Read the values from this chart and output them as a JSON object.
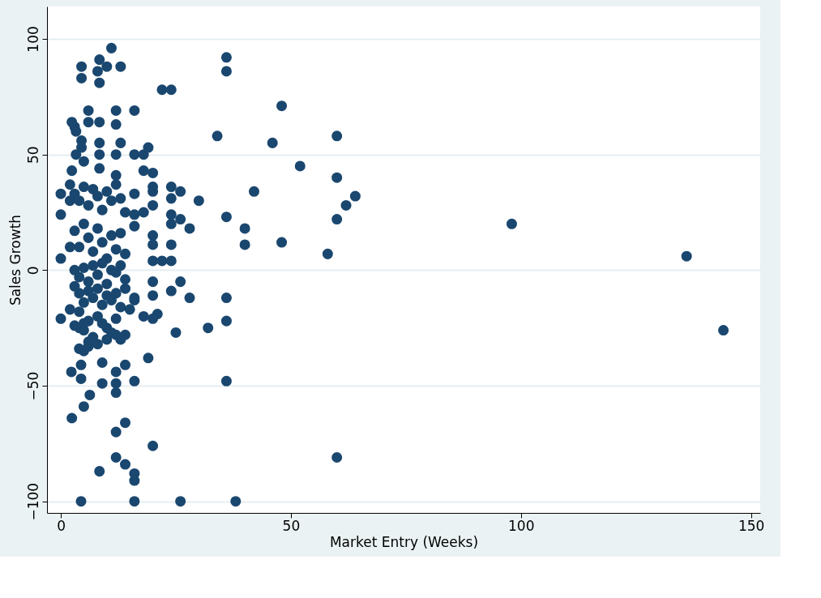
{
  "chart_data": {
    "type": "scatter",
    "xlabel": "Market Entry (Weeks)",
    "ylabel": "Sales Growth",
    "xlim": [
      -3,
      152
    ],
    "ylim": [
      -105,
      114
    ],
    "xticks": [
      0,
      50,
      100,
      150
    ],
    "yticks": [
      -100,
      -50,
      0,
      50,
      100
    ],
    "grid": "y",
    "marker": "circle",
    "series": [
      {
        "color": "#1a476f",
        "x": [
          98,
          136,
          144,
          60,
          60,
          60,
          60,
          62,
          64,
          58,
          48,
          46,
          52,
          48,
          42,
          40,
          40,
          36,
          36,
          36,
          36,
          36,
          36,
          34,
          38,
          32,
          30,
          28,
          28,
          26,
          26,
          25,
          22,
          24,
          11,
          4.5,
          4.5,
          8.4,
          8,
          8.4,
          10,
          13,
          6,
          6,
          8.4,
          12,
          12,
          16,
          2.4,
          3,
          3.3,
          4.5,
          4.5,
          8.4,
          8.4,
          13,
          12,
          16,
          19,
          18,
          3.3,
          5,
          2.4,
          8.4,
          12,
          18,
          20,
          20,
          20,
          24,
          26,
          24,
          0,
          0,
          16,
          16,
          18,
          20,
          24,
          24,
          26,
          20,
          20,
          24,
          0,
          24,
          20,
          22,
          4.4,
          2.3,
          4.4,
          9,
          9,
          12,
          14,
          12,
          12,
          16,
          19,
          6.3,
          5,
          2.4,
          14,
          12,
          20,
          12,
          14,
          8.4,
          16,
          16,
          4.4,
          16,
          24,
          20,
          20,
          21,
          20,
          18,
          15,
          16,
          0,
          2,
          3,
          4,
          5,
          6,
          7,
          8,
          9,
          10,
          11,
          12,
          13,
          14,
          2,
          3,
          4,
          5,
          6,
          7,
          8,
          9,
          10,
          11,
          12,
          13,
          14,
          16,
          2,
          3,
          4,
          5,
          6,
          7,
          8,
          9,
          10,
          11,
          12,
          13,
          14,
          3,
          4,
          5,
          6,
          7,
          8,
          9,
          10,
          11,
          12,
          13,
          14,
          16,
          2,
          4,
          6,
          8,
          10,
          12,
          14,
          3,
          5,
          7,
          9,
          11,
          13,
          4,
          5,
          6,
          8,
          10,
          12,
          4,
          5,
          6
        ],
        "values": [
          20,
          6,
          -26,
          58,
          40,
          22,
          -81,
          28,
          32,
          7,
          71,
          55,
          45,
          12,
          34,
          18,
          11,
          92,
          86,
          23,
          -12,
          -22,
          -48,
          58,
          -100,
          -25,
          30,
          18,
          -12,
          -100,
          -5,
          -27,
          78,
          78,
          96,
          88,
          83,
          91,
          86,
          81,
          88,
          88,
          69,
          64,
          64,
          69,
          63,
          69,
          64,
          62,
          60,
          56,
          53,
          55,
          50,
          55,
          50,
          50,
          53,
          50,
          50,
          47,
          43,
          44,
          41,
          43,
          42,
          36,
          34,
          36,
          34,
          31,
          33,
          24,
          33,
          24,
          25,
          28,
          24,
          20,
          22,
          15,
          11,
          11,
          5,
          4,
          4,
          4,
          -41,
          -44,
          -47,
          -40,
          -49,
          -44,
          -41,
          -49,
          -53,
          -48,
          -38,
          -54,
          -59,
          -64,
          -66,
          -70,
          -76,
          -81,
          -84,
          -87,
          -88,
          -91,
          -100,
          -100,
          -9,
          -5,
          -11,
          -19,
          -21,
          -20,
          -17,
          -13,
          -21,
          37,
          33,
          30,
          36,
          28,
          35,
          32,
          26,
          34,
          30,
          37,
          31,
          25,
          30,
          17,
          10,
          20,
          14,
          8,
          18,
          12,
          5,
          15,
          9,
          16,
          7,
          19,
          10,
          0,
          -3,
          1,
          -5,
          2,
          -2,
          3,
          -6,
          0,
          -1,
          2,
          -4,
          -7,
          -10,
          -14,
          -9,
          -12,
          -8,
          -15,
          -11,
          -13,
          -10,
          -16,
          -8,
          -12,
          -17,
          -18,
          -22,
          -20,
          -25,
          -21,
          -28,
          -24,
          -26,
          -29,
          -23,
          -27,
          -30,
          -34,
          -35,
          -33,
          -32,
          -30,
          -28,
          -25,
          -23,
          -31
        ]
      }
    ]
  }
}
